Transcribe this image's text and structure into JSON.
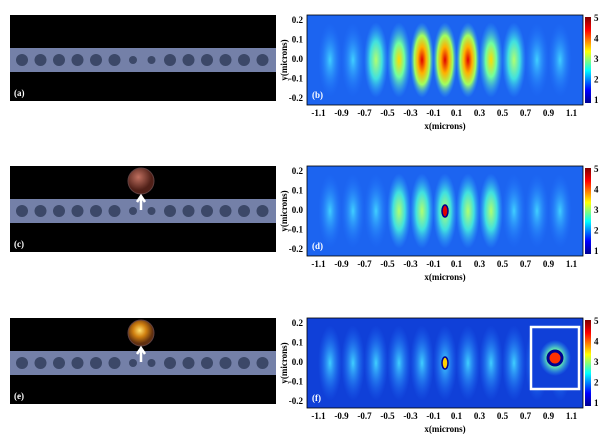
{
  "panels": [
    {
      "label": "(a)"
    },
    {
      "label": "(c)"
    },
    {
      "label": "(e)"
    }
  ],
  "maps": [
    {
      "label": "(b)",
      "x_label": "x(microns)",
      "y_label": "y(microns)",
      "x_ticks": [
        "-1.1",
        "-0.9",
        "-0.7",
        "-0.5",
        "-0.3",
        "-0.1",
        "0.1",
        "0.3",
        "0.5",
        "0.7",
        "0.9",
        "1.1"
      ],
      "y_ticks": [
        "0.2",
        "0.1",
        "0.0",
        "-0.1",
        "-0.2"
      ],
      "colorbar_ticks": [
        "5",
        "4",
        "3",
        "2",
        "1"
      ]
    },
    {
      "label": "(d)",
      "x_label": "x(microns)",
      "y_label": "y(microns)",
      "x_ticks": [
        "-1.1",
        "-0.9",
        "-0.7",
        "-0.5",
        "-0.3",
        "-0.1",
        "0.1",
        "0.3",
        "0.5",
        "0.7",
        "0.9",
        "1.1"
      ],
      "y_ticks": [
        "0.2",
        "0.1",
        "0.0",
        "-0.1",
        "-0.2"
      ],
      "colorbar_ticks": [
        "5",
        "4",
        "3",
        "2",
        "1"
      ]
    },
    {
      "label": "(f)",
      "x_label": "x(microns)",
      "y_label": "y(microns)",
      "x_ticks": [
        "-1.1",
        "-0.9",
        "-0.7",
        "-0.5",
        "-0.3",
        "-0.1",
        "0.1",
        "0.3",
        "0.5",
        "0.7",
        "0.9",
        "1.1"
      ],
      "y_ticks": [
        "0.2",
        "0.1",
        "0.0",
        "-0.1",
        "-0.2"
      ],
      "colorbar_ticks": [
        "5",
        "4",
        "3",
        "2",
        "1"
      ]
    }
  ]
}
